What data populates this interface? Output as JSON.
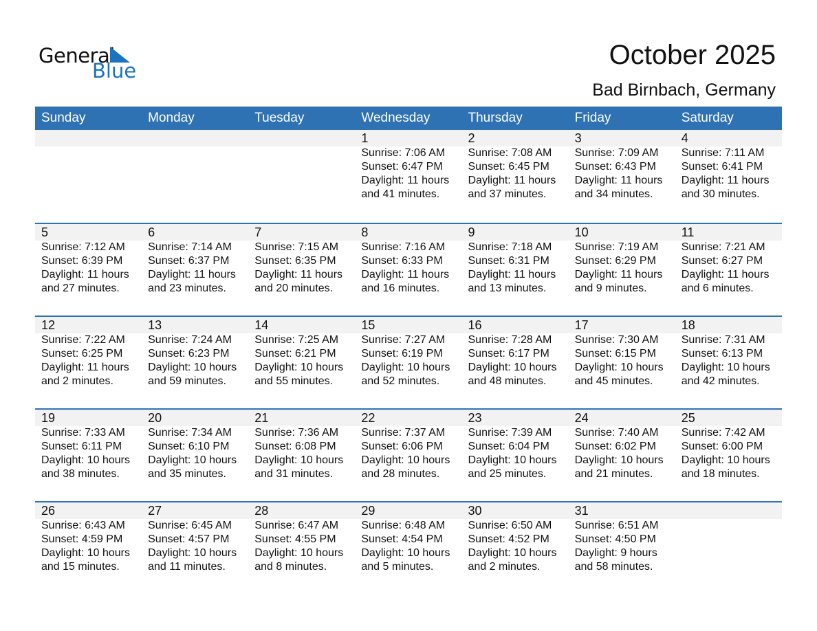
{
  "logo": {
    "word1": "General",
    "word2": "Blue",
    "color": "#1a73c0"
  },
  "title": "October 2025",
  "location": "Bad Birnbach, Germany",
  "colors": {
    "header": "#2e72b4",
    "band": "#f2f2f2"
  },
  "weekdays": [
    "Sunday",
    "Monday",
    "Tuesday",
    "Wednesday",
    "Thursday",
    "Friday",
    "Saturday"
  ],
  "weeks": [
    [
      null,
      null,
      null,
      {
        "day": "1",
        "sunrise": "Sunrise: 7:06 AM",
        "sunset": "Sunset: 6:47 PM",
        "daylight1": "Daylight: 11 hours",
        "daylight2": "and 41 minutes."
      },
      {
        "day": "2",
        "sunrise": "Sunrise: 7:08 AM",
        "sunset": "Sunset: 6:45 PM",
        "daylight1": "Daylight: 11 hours",
        "daylight2": "and 37 minutes."
      },
      {
        "day": "3",
        "sunrise": "Sunrise: 7:09 AM",
        "sunset": "Sunset: 6:43 PM",
        "daylight1": "Daylight: 11 hours",
        "daylight2": "and 34 minutes."
      },
      {
        "day": "4",
        "sunrise": "Sunrise: 7:11 AM",
        "sunset": "Sunset: 6:41 PM",
        "daylight1": "Daylight: 11 hours",
        "daylight2": "and 30 minutes."
      }
    ],
    [
      {
        "day": "5",
        "sunrise": "Sunrise: 7:12 AM",
        "sunset": "Sunset: 6:39 PM",
        "daylight1": "Daylight: 11 hours",
        "daylight2": "and 27 minutes."
      },
      {
        "day": "6",
        "sunrise": "Sunrise: 7:14 AM",
        "sunset": "Sunset: 6:37 PM",
        "daylight1": "Daylight: 11 hours",
        "daylight2": "and 23 minutes."
      },
      {
        "day": "7",
        "sunrise": "Sunrise: 7:15 AM",
        "sunset": "Sunset: 6:35 PM",
        "daylight1": "Daylight: 11 hours",
        "daylight2": "and 20 minutes."
      },
      {
        "day": "8",
        "sunrise": "Sunrise: 7:16 AM",
        "sunset": "Sunset: 6:33 PM",
        "daylight1": "Daylight: 11 hours",
        "daylight2": "and 16 minutes."
      },
      {
        "day": "9",
        "sunrise": "Sunrise: 7:18 AM",
        "sunset": "Sunset: 6:31 PM",
        "daylight1": "Daylight: 11 hours",
        "daylight2": "and 13 minutes."
      },
      {
        "day": "10",
        "sunrise": "Sunrise: 7:19 AM",
        "sunset": "Sunset: 6:29 PM",
        "daylight1": "Daylight: 11 hours",
        "daylight2": "and 9 minutes."
      },
      {
        "day": "11",
        "sunrise": "Sunrise: 7:21 AM",
        "sunset": "Sunset: 6:27 PM",
        "daylight1": "Daylight: 11 hours",
        "daylight2": "and 6 minutes."
      }
    ],
    [
      {
        "day": "12",
        "sunrise": "Sunrise: 7:22 AM",
        "sunset": "Sunset: 6:25 PM",
        "daylight1": "Daylight: 11 hours",
        "daylight2": "and 2 minutes."
      },
      {
        "day": "13",
        "sunrise": "Sunrise: 7:24 AM",
        "sunset": "Sunset: 6:23 PM",
        "daylight1": "Daylight: 10 hours",
        "daylight2": "and 59 minutes."
      },
      {
        "day": "14",
        "sunrise": "Sunrise: 7:25 AM",
        "sunset": "Sunset: 6:21 PM",
        "daylight1": "Daylight: 10 hours",
        "daylight2": "and 55 minutes."
      },
      {
        "day": "15",
        "sunrise": "Sunrise: 7:27 AM",
        "sunset": "Sunset: 6:19 PM",
        "daylight1": "Daylight: 10 hours",
        "daylight2": "and 52 minutes."
      },
      {
        "day": "16",
        "sunrise": "Sunrise: 7:28 AM",
        "sunset": "Sunset: 6:17 PM",
        "daylight1": "Daylight: 10 hours",
        "daylight2": "and 48 minutes."
      },
      {
        "day": "17",
        "sunrise": "Sunrise: 7:30 AM",
        "sunset": "Sunset: 6:15 PM",
        "daylight1": "Daylight: 10 hours",
        "daylight2": "and 45 minutes."
      },
      {
        "day": "18",
        "sunrise": "Sunrise: 7:31 AM",
        "sunset": "Sunset: 6:13 PM",
        "daylight1": "Daylight: 10 hours",
        "daylight2": "and 42 minutes."
      }
    ],
    [
      {
        "day": "19",
        "sunrise": "Sunrise: 7:33 AM",
        "sunset": "Sunset: 6:11 PM",
        "daylight1": "Daylight: 10 hours",
        "daylight2": "and 38 minutes."
      },
      {
        "day": "20",
        "sunrise": "Sunrise: 7:34 AM",
        "sunset": "Sunset: 6:10 PM",
        "daylight1": "Daylight: 10 hours",
        "daylight2": "and 35 minutes."
      },
      {
        "day": "21",
        "sunrise": "Sunrise: 7:36 AM",
        "sunset": "Sunset: 6:08 PM",
        "daylight1": "Daylight: 10 hours",
        "daylight2": "and 31 minutes."
      },
      {
        "day": "22",
        "sunrise": "Sunrise: 7:37 AM",
        "sunset": "Sunset: 6:06 PM",
        "daylight1": "Daylight: 10 hours",
        "daylight2": "and 28 minutes."
      },
      {
        "day": "23",
        "sunrise": "Sunrise: 7:39 AM",
        "sunset": "Sunset: 6:04 PM",
        "daylight1": "Daylight: 10 hours",
        "daylight2": "and 25 minutes."
      },
      {
        "day": "24",
        "sunrise": "Sunrise: 7:40 AM",
        "sunset": "Sunset: 6:02 PM",
        "daylight1": "Daylight: 10 hours",
        "daylight2": "and 21 minutes."
      },
      {
        "day": "25",
        "sunrise": "Sunrise: 7:42 AM",
        "sunset": "Sunset: 6:00 PM",
        "daylight1": "Daylight: 10 hours",
        "daylight2": "and 18 minutes."
      }
    ],
    [
      {
        "day": "26",
        "sunrise": "Sunrise: 6:43 AM",
        "sunset": "Sunset: 4:59 PM",
        "daylight1": "Daylight: 10 hours",
        "daylight2": "and 15 minutes."
      },
      {
        "day": "27",
        "sunrise": "Sunrise: 6:45 AM",
        "sunset": "Sunset: 4:57 PM",
        "daylight1": "Daylight: 10 hours",
        "daylight2": "and 11 minutes."
      },
      {
        "day": "28",
        "sunrise": "Sunrise: 6:47 AM",
        "sunset": "Sunset: 4:55 PM",
        "daylight1": "Daylight: 10 hours",
        "daylight2": "and 8 minutes."
      },
      {
        "day": "29",
        "sunrise": "Sunrise: 6:48 AM",
        "sunset": "Sunset: 4:54 PM",
        "daylight1": "Daylight: 10 hours",
        "daylight2": "and 5 minutes."
      },
      {
        "day": "30",
        "sunrise": "Sunrise: 6:50 AM",
        "sunset": "Sunset: 4:52 PM",
        "daylight1": "Daylight: 10 hours",
        "daylight2": "and 2 minutes."
      },
      {
        "day": "31",
        "sunrise": "Sunrise: 6:51 AM",
        "sunset": "Sunset: 4:50 PM",
        "daylight1": "Daylight: 9 hours",
        "daylight2": "and 58 minutes."
      },
      null
    ]
  ]
}
